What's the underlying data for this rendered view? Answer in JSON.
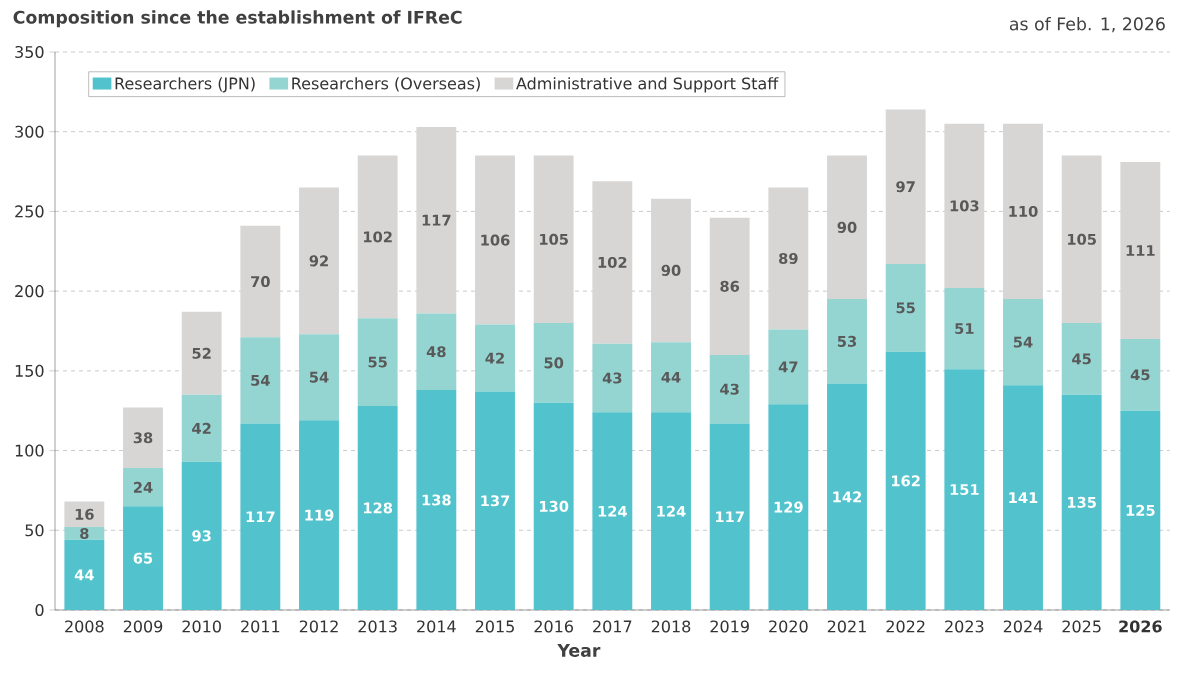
{
  "chart_data": {
    "type": "bar",
    "stacked": true,
    "title": "Composition since the establishment of IFReC",
    "xlabel": "Year",
    "annotations": [
      "as of Feb. 1, 2026"
    ],
    "categories": [
      "2008",
      "2009",
      "2010",
      "2011",
      "2012",
      "2013",
      "2014",
      "2015",
      "2016",
      "2017",
      "2018",
      "2019",
      "2020",
      "2021",
      "2022",
      "2023",
      "2024",
      "2025",
      "**2026**"
    ],
    "series": [
      {
        "name": "Researchers (JPN)",
        "color": "#52c3cd",
        "values": [
          44,
          65,
          93,
          117,
          119,
          128,
          138,
          137,
          130,
          124,
          124,
          117,
          129,
          142,
          162,
          151,
          141,
          135,
          125
        ]
      },
      {
        "name": "Researchers (Overseas)",
        "color": "#94d5d2",
        "values": [
          8,
          24,
          42,
          54,
          54,
          55,
          48,
          42,
          50,
          43,
          44,
          43,
          47,
          53,
          55,
          51,
          54,
          45,
          45
        ]
      },
      {
        "name": "Administrative and Support Staff",
        "color": "#d8d6d5",
        "values": [
          16,
          38,
          52,
          70,
          92,
          102,
          117,
          106,
          105,
          102,
          90,
          86,
          89,
          90,
          97,
          103,
          110,
          105,
          111
        ]
      }
    ],
    "ylim": [
      0,
      350
    ],
    "yticks": [
      0,
      50,
      100,
      150,
      200,
      250,
      300,
      350
    ],
    "grid": "y",
    "legend": "top left",
    "data_labels": true
  }
}
